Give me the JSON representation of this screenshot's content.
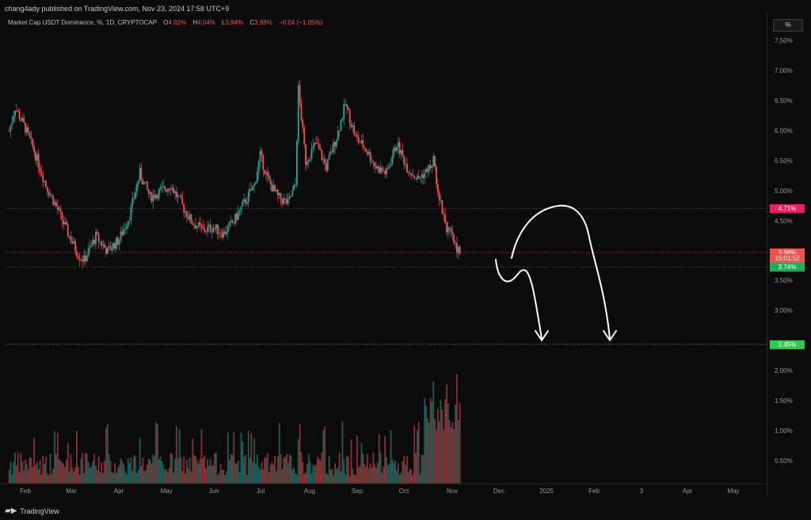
{
  "header": {
    "text": "chang4ady published on TradingView.com, Nov 23, 2024 17:58 UTC+9"
  },
  "symbol": {
    "title": "Market Cap USDT Dominance, %, 1D, CRYPTOCAP",
    "o_label": "O",
    "o_value": "4.02%",
    "h_label": "H",
    "h_value": "4.04%",
    "l_label": "L",
    "l_value": "3.94%",
    "c_label": "C",
    "c_value": "3.98%",
    "change": "−0.04 (−1.05%)"
  },
  "price_scale": {
    "unit_button": "%",
    "ticks": [
      "7.50%",
      "7.00%",
      "6.50%",
      "6.00%",
      "5.50%",
      "5.00%",
      "4.50%",
      "3.50%",
      "3.00%",
      "2.00%",
      "1.50%",
      "1.00%",
      "0.50%"
    ],
    "tick_values": [
      7.5,
      7.0,
      6.5,
      6.0,
      5.5,
      5.0,
      4.5,
      3.5,
      3.0,
      2.0,
      1.5,
      1.0,
      0.5
    ],
    "labels": [
      {
        "text": "4.71%",
        "value": 4.71,
        "color": "#e91e63"
      },
      {
        "text": "3.98%",
        "value": 3.98,
        "color": "#ef5350"
      },
      {
        "text": "15:01:52",
        "value": 3.88,
        "color": "#ef5350"
      },
      {
        "text": "3.74%",
        "value": 3.74,
        "color": "#22ab5a"
      },
      {
        "text": "2.45%",
        "value": 2.45,
        "color": "#2ec94e"
      }
    ]
  },
  "time_axis": {
    "labels": [
      "Feb",
      "Mar",
      "Apr",
      "May",
      "Jun",
      "Jul",
      "Aug",
      "Sep",
      "Oct",
      "Nov",
      "Dec",
      "2025",
      "Feb",
      "3",
      "Apr",
      "May"
    ]
  },
  "footer": {
    "brand": "TradingView"
  },
  "colors": {
    "up": "#26a69a",
    "down": "#ef5350",
    "background": "#0b0b0b"
  },
  "chart_data": {
    "type": "candlestick",
    "symbol": "Market Cap USDT Dominance, %, 1D, CRYPTOCAP",
    "ylim": [
      0,
      7.8
    ],
    "horizontal_levels": [
      {
        "value": 4.71,
        "style": "dotted",
        "color": "#e91e63"
      },
      {
        "value": 3.98,
        "style": "dotted",
        "color": "#ef5350"
      },
      {
        "value": 3.74,
        "style": "dotted",
        "color": "#22ab5a"
      },
      {
        "value": 2.45,
        "style": "dotted",
        "color": "#2ec94e"
      }
    ],
    "close_path": [
      {
        "t": "Jan 21",
        "v": 6.0
      },
      {
        "t": "Jan 25",
        "v": 6.4
      },
      {
        "t": "Feb 1",
        "v": 6.05
      },
      {
        "t": "Feb 8",
        "v": 5.6
      },
      {
        "t": "Feb 15",
        "v": 5.1
      },
      {
        "t": "Feb 22",
        "v": 4.75
      },
      {
        "t": "Mar 1",
        "v": 4.3
      },
      {
        "t": "Mar 8",
        "v": 3.95
      },
      {
        "t": "Mar 12",
        "v": 3.85
      },
      {
        "t": "Mar 20",
        "v": 4.25
      },
      {
        "t": "Mar 28",
        "v": 4.0
      },
      {
        "t": "Apr 5",
        "v": 4.2
      },
      {
        "t": "Apr 12",
        "v": 4.6
      },
      {
        "t": "Apr 19",
        "v": 5.3
      },
      {
        "t": "Apr 26",
        "v": 4.9
      },
      {
        "t": "May 3",
        "v": 5.0
      },
      {
        "t": "May 10",
        "v": 5.1
      },
      {
        "t": "May 17",
        "v": 4.8
      },
      {
        "t": "May 24",
        "v": 4.5
      },
      {
        "t": "Jun 1",
        "v": 4.35
      },
      {
        "t": "Jun 8",
        "v": 4.4
      },
      {
        "t": "Jun 15",
        "v": 4.3
      },
      {
        "t": "Jun 22",
        "v": 4.5
      },
      {
        "t": "Jun 29",
        "v": 4.8
      },
      {
        "t": "Jul 6",
        "v": 5.1
      },
      {
        "t": "Jul 10",
        "v": 5.6
      },
      {
        "t": "Jul 15",
        "v": 5.2
      },
      {
        "t": "Jul 22",
        "v": 4.9
      },
      {
        "t": "Jul 29",
        "v": 4.8
      },
      {
        "t": "Aug 3",
        "v": 5.1
      },
      {
        "t": "Aug 5",
        "v": 6.7
      },
      {
        "t": "Aug 10",
        "v": 5.5
      },
      {
        "t": "Aug 17",
        "v": 5.8
      },
      {
        "t": "Aug 24",
        "v": 5.4
      },
      {
        "t": "Aug 31",
        "v": 5.9
      },
      {
        "t": "Sep 6",
        "v": 6.45
      },
      {
        "t": "Sep 13",
        "v": 5.9
      },
      {
        "t": "Sep 20",
        "v": 5.7
      },
      {
        "t": "Sep 27",
        "v": 5.4
      },
      {
        "t": "Oct 4",
        "v": 5.3
      },
      {
        "t": "Oct 11",
        "v": 5.8
      },
      {
        "t": "Oct 18",
        "v": 5.4
      },
      {
        "t": "Oct 25",
        "v": 5.2
      },
      {
        "t": "Nov 1",
        "v": 5.35
      },
      {
        "t": "Nov 5",
        "v": 5.5
      },
      {
        "t": "Nov 9",
        "v": 4.9
      },
      {
        "t": "Nov 14",
        "v": 4.4
      },
      {
        "t": "Nov 18",
        "v": 4.2
      },
      {
        "t": "Nov 23",
        "v": 3.98
      }
    ],
    "volume_panel": {
      "ticks": [
        "2.00%",
        "1.50%",
        "1.00%",
        "0.50%"
      ],
      "note": "bars shown beneath price"
    },
    "annotations": [
      {
        "type": "freehand-arrow",
        "description": "drawn white arrow pointing down to 2.45% level"
      },
      {
        "type": "freehand-arrow",
        "description": "drawn white arc arrow pointing down to 2.45% level"
      }
    ]
  }
}
